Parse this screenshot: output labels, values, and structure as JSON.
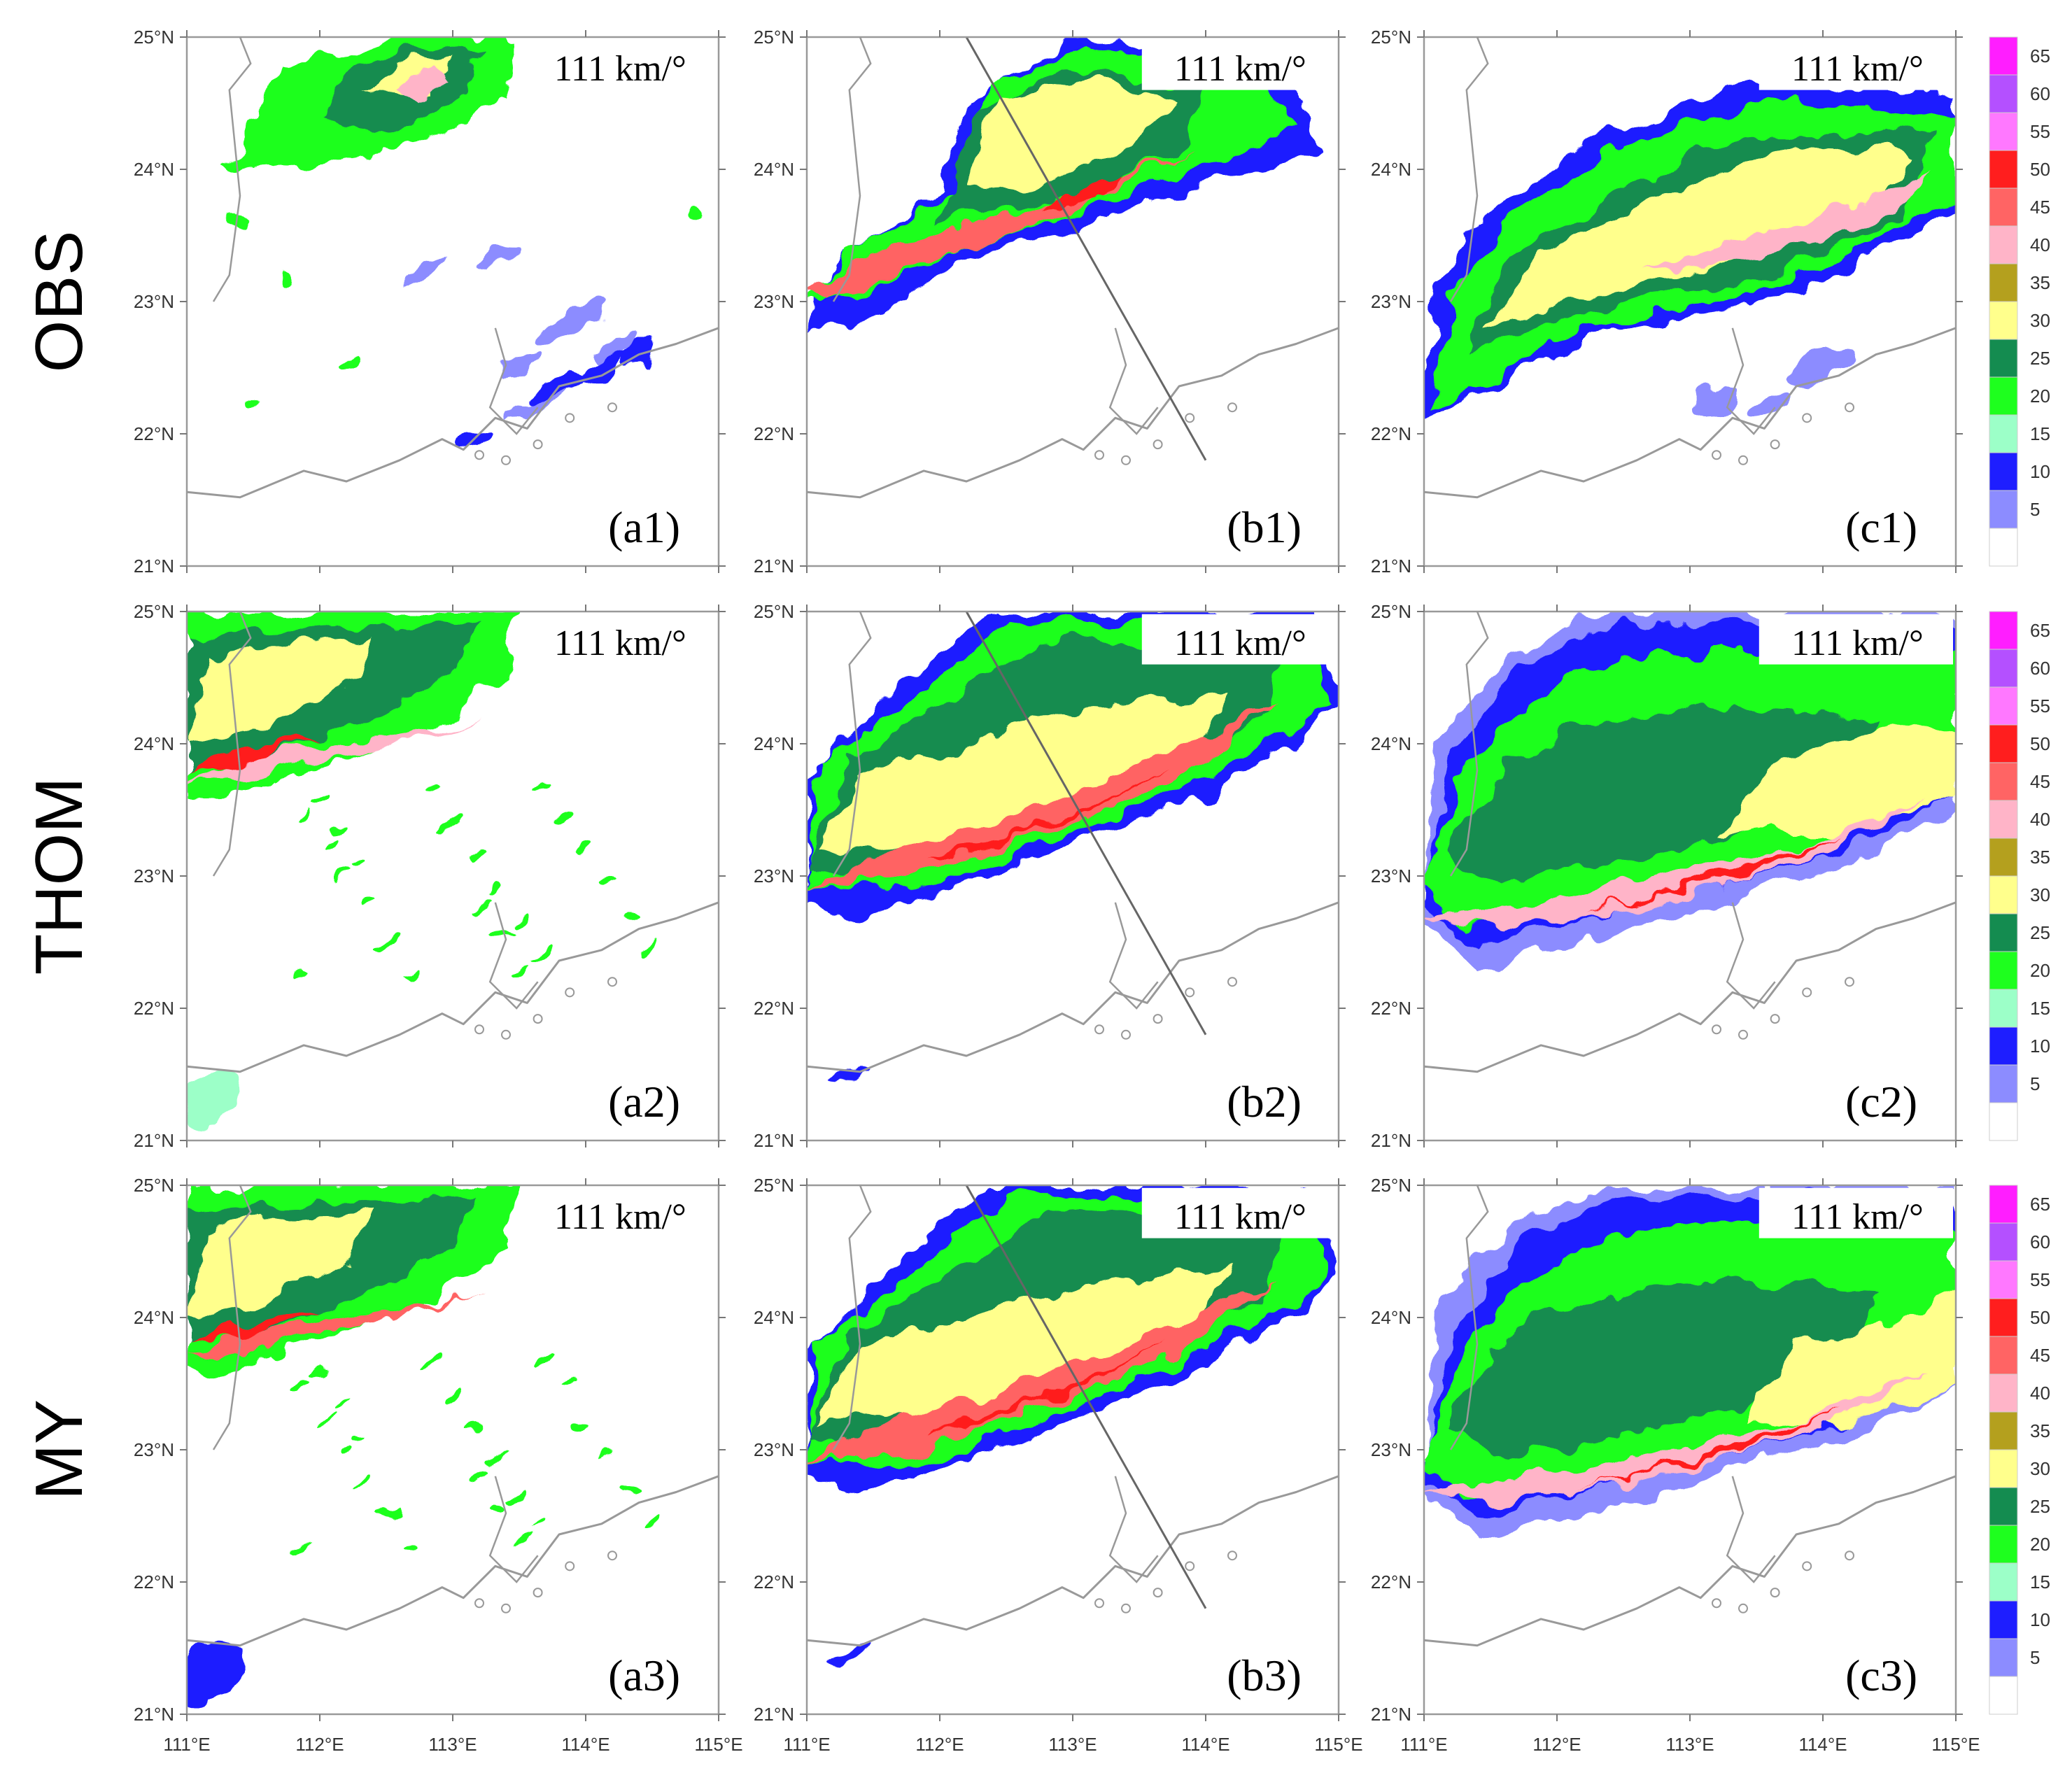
{
  "rows": [
    {
      "label": "OBS",
      "panels": [
        {
          "id": "a1",
          "panel_label": "(a1)",
          "scale_text": "111 km/°",
          "transect": false
        },
        {
          "id": "b1",
          "panel_label": "(b1)",
          "scale_text": "111 km/°",
          "transect": true
        },
        {
          "id": "c1",
          "panel_label": "(c1)",
          "scale_text": "111 km/°",
          "transect": false
        }
      ]
    },
    {
      "label": "THOM",
      "panels": [
        {
          "id": "a2",
          "panel_label": "(a2)",
          "scale_text": "111 km/°",
          "transect": false
        },
        {
          "id": "b2",
          "panel_label": "(b2)",
          "scale_text": "111 km/°",
          "transect": true
        },
        {
          "id": "c2",
          "panel_label": "(c2)",
          "scale_text": "111 km/°",
          "transect": false
        }
      ]
    },
    {
      "label": "MY",
      "panels": [
        {
          "id": "a3",
          "panel_label": "(a3)",
          "scale_text": "111 km/°",
          "transect": false
        },
        {
          "id": "b3",
          "panel_label": "(b3)",
          "scale_text": "111 km/°",
          "transect": true
        },
        {
          "id": "c3",
          "panel_label": "(c3)",
          "scale_text": "111 km/°",
          "transect": false
        }
      ]
    }
  ],
  "lat_ticks": [
    "25°N",
    "24°N",
    "23°N",
    "22°N",
    "21°N"
  ],
  "lon_ticks": [
    "111°E",
    "112°E",
    "113°E",
    "114°E",
    "115°E"
  ],
  "colorbar": {
    "labels": [
      "5",
      "10",
      "15",
      "20",
      "25",
      "30",
      "35",
      "40",
      "45",
      "50",
      "55",
      "60",
      "65"
    ],
    "colors": [
      "#ffffff",
      "#8c8cff",
      "#1e1eff",
      "#9cffc8",
      "#1eff1e",
      "#148c50",
      "#ffff8c",
      "#b4a01e",
      "#ffb4c8",
      "#ff6464",
      "#ff1e1e",
      "#ff78ff",
      "#b450ff",
      "#ff1eff"
    ]
  },
  "style": {
    "coast_color": "#999999",
    "transect_color": "#666666"
  }
}
